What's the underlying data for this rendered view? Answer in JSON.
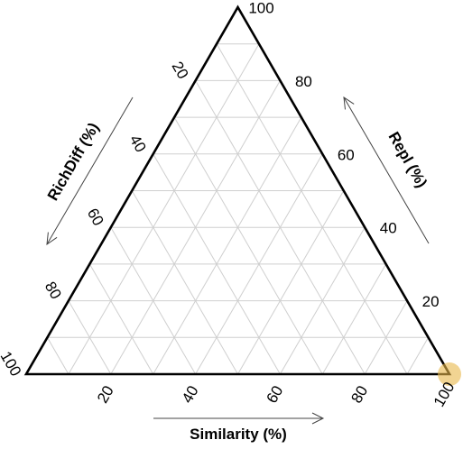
{
  "chart_data": {
    "type": "scatter",
    "subtype": "ternary",
    "axes": {
      "bottom": {
        "label": "Similarity (%)",
        "ticks": [
          "20",
          "40",
          "60",
          "80",
          "100"
        ],
        "direction": "left-to-right"
      },
      "right": {
        "label": "Repl (%)",
        "ticks": [
          "20",
          "40",
          "60",
          "80",
          "100"
        ],
        "direction": "bottom-to-top"
      },
      "left": {
        "label": "RichDiff (%)",
        "ticks": [
          "20",
          "40",
          "60",
          "80",
          "100"
        ],
        "direction": "top-to-bottom"
      }
    },
    "range": [
      0,
      100
    ],
    "grid": true,
    "grid_step": 10,
    "points": [
      {
        "similarity": 100,
        "repl": 0,
        "richdiff": 0,
        "color": "#e8b84a"
      }
    ]
  }
}
